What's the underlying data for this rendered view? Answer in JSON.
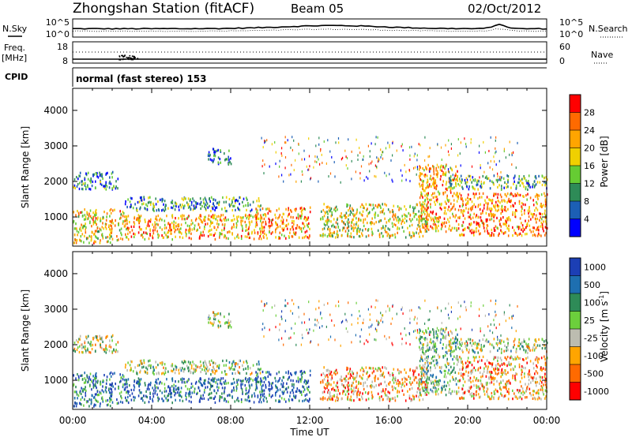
{
  "header": {
    "station": "Zhongshan Station (fitACF)",
    "beam": "Beam 05",
    "date": "02/Oct/2012"
  },
  "noise_panel": {
    "left_label": "N.Sky",
    "right_label": "N.Search",
    "left_ticks": [
      "10^5",
      "10^0"
    ],
    "right_ticks": [
      "10^5",
      "10^0"
    ]
  },
  "freq_panel": {
    "left_label_line1": "Freq.",
    "left_label_line2": "[MHz]",
    "right_label": "Nave",
    "left_ticks": [
      "18",
      "8"
    ],
    "right_ticks": [
      "60",
      "0"
    ]
  },
  "cpid": {
    "label": "CPID",
    "text": "normal (fast stereo) 153"
  },
  "time_axis": {
    "label": "Time UT",
    "ticks": [
      "00:00",
      "04:00",
      "08:00",
      "12:00",
      "16:00",
      "20:00",
      "00:00"
    ]
  },
  "chart_data": [
    {
      "type": "heatmap",
      "panel": "power",
      "ylabel": "Slant Range [km]",
      "yticks": [
        1000,
        2000,
        3000,
        4000
      ],
      "ylim": [
        180,
        4620
      ],
      "xlim": [
        0,
        24
      ],
      "colorbar": {
        "label": "Power [dB]",
        "ticks": [
          "28",
          "24",
          "20",
          "16",
          "12",
          "8",
          "4"
        ],
        "colors": [
          "#ff0000",
          "#ff6a00",
          "#ffa500",
          "#f0d000",
          "#66cc33",
          "#2e8b57",
          "#1c5fb5",
          "#0000ff"
        ]
      },
      "scatter_regions": [
        {
          "t0": 0.0,
          "t1": 2.6,
          "r0": 300,
          "r1": 1250,
          "level": 0.62
        },
        {
          "t0": 0.0,
          "t1": 2.3,
          "r0": 1800,
          "r1": 2300,
          "level": 0.25
        },
        {
          "t0": 2.6,
          "t1": 9.2,
          "r0": 400,
          "r1": 1100,
          "level": 0.68
        },
        {
          "t0": 2.6,
          "t1": 9.5,
          "r0": 1200,
          "r1": 1600,
          "level": 0.3
        },
        {
          "t0": 6.8,
          "t1": 8.0,
          "r0": 2500,
          "r1": 2950,
          "level": 0.22
        },
        {
          "t0": 9.2,
          "t1": 12.0,
          "r0": 400,
          "r1": 1300,
          "level": 0.72
        },
        {
          "t0": 12.5,
          "t1": 18.0,
          "r0": 450,
          "r1": 1400,
          "level": 0.55
        },
        {
          "t0": 17.5,
          "t1": 19.5,
          "r0": 600,
          "r1": 2500,
          "level": 0.7
        },
        {
          "t0": 19.5,
          "t1": 24.0,
          "r0": 500,
          "r1": 1700,
          "level": 0.75
        },
        {
          "t0": 19.0,
          "t1": 24.0,
          "r0": 1800,
          "r1": 2200,
          "level": 0.35
        }
      ]
    },
    {
      "type": "heatmap",
      "panel": "velocity",
      "ylabel": "Slant Range [km]",
      "yticks": [
        1000,
        2000,
        3000,
        4000
      ],
      "ylim": [
        180,
        4620
      ],
      "xlim": [
        0,
        24
      ],
      "colorbar": {
        "label": "Velocity [m s^-1]",
        "ticks": [
          "1000",
          "500",
          "100",
          "25",
          "-25",
          "-100",
          "-500",
          "-1000"
        ],
        "colors": [
          "#1c3fb5",
          "#1e6fb0",
          "#2e8b57",
          "#6ccf3c",
          "#bcbcb0",
          "#ffa500",
          "#ff6a00",
          "#ff0000"
        ]
      },
      "scatter_regions": [
        {
          "t0": 0.0,
          "t1": 2.6,
          "r0": 300,
          "r1": 1250,
          "level": 0.8
        },
        {
          "t0": 0.0,
          "t1": 2.3,
          "r0": 1800,
          "r1": 2300,
          "level": 0.45
        },
        {
          "t0": 2.6,
          "t1": 9.2,
          "r0": 400,
          "r1": 1100,
          "level": 0.85
        },
        {
          "t0": 2.6,
          "t1": 9.5,
          "r0": 1200,
          "r1": 1600,
          "level": 0.5
        },
        {
          "t0": 6.8,
          "t1": 8.0,
          "r0": 2500,
          "r1": 2950,
          "level": 0.5
        },
        {
          "t0": 9.2,
          "t1": 12.0,
          "r0": 400,
          "r1": 1300,
          "level": 0.85
        },
        {
          "t0": 12.5,
          "t1": 18.0,
          "r0": 450,
          "r1": 1400,
          "level": 0.3
        },
        {
          "t0": 17.5,
          "t1": 19.5,
          "r0": 600,
          "r1": 2500,
          "level": 0.6
        },
        {
          "t0": 19.5,
          "t1": 24.0,
          "r0": 500,
          "r1": 1700,
          "level": 0.3
        },
        {
          "t0": 19.0,
          "t1": 24.0,
          "r0": 1800,
          "r1": 2200,
          "level": 0.5
        }
      ]
    }
  ]
}
